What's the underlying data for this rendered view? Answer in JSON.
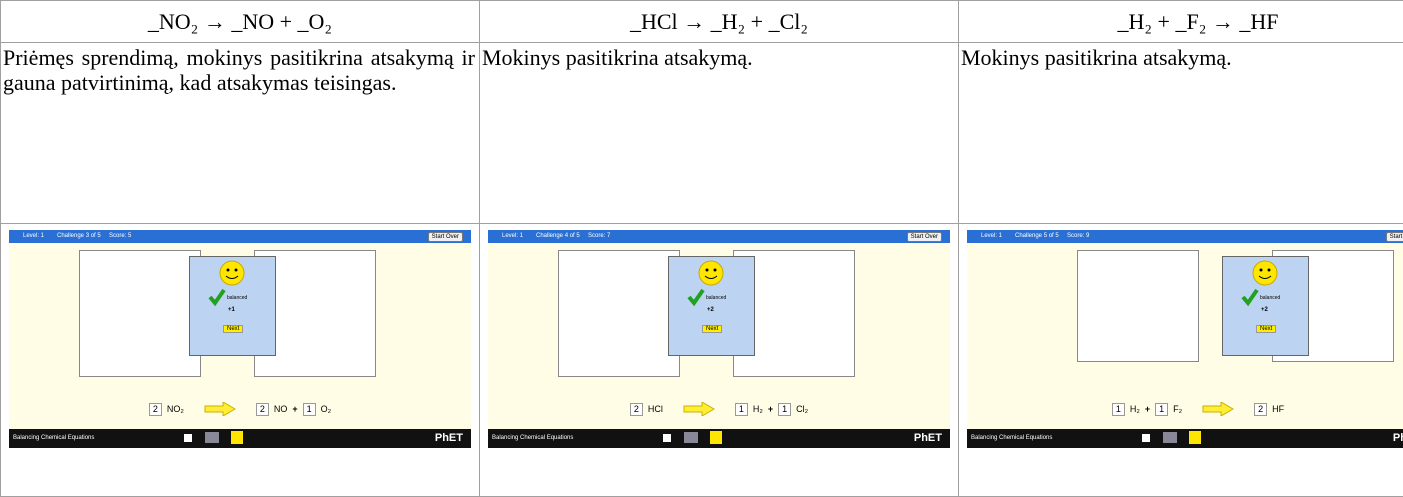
{
  "table": {
    "header": [
      "_NO₂ → _NO + _O₂",
      "_HCl → _H₂ + _Cl₂",
      "_H₂ + _F₂ → _HF"
    ],
    "descriptions": [
      "Priėmęs sprendimą, mokinys pasitikrina atsakymą ir gauna patvirtinimą, kad atsakymas teisingas.",
      "Mokinys pasitikrina atsakymą.",
      "Mokinys pasitikrina atsakymą."
    ]
  },
  "screenshots": [
    {
      "level": "Level: 1",
      "challenge": "Challenge 3 of 5",
      "score": "Score: 5",
      "button": "Start Over",
      "status": "balanced",
      "points": "+1",
      "next": "Next",
      "reactants": [
        {
          "coef": 2,
          "formula": "NO₂"
        }
      ],
      "products": [
        {
          "coef": 2,
          "formula": "NO"
        },
        {
          "coef": 1,
          "formula": "O₂"
        }
      ],
      "plus": "+",
      "footer": "Balancing Chemical Equations",
      "logo": "PhET"
    },
    {
      "level": "Level: 1",
      "challenge": "Challenge 4 of 5",
      "score": "Score: 7",
      "button": "Start Over",
      "status": "balanced",
      "points": "+2",
      "next": "Next",
      "reactants": [
        {
          "coef": 2,
          "formula": "HCl"
        }
      ],
      "products": [
        {
          "coef": 1,
          "formula": "H₂"
        },
        {
          "coef": 1,
          "formula": "Cl₂"
        }
      ],
      "plus": "+",
      "footer": "Balancing Chemical Equations",
      "logo": "PhET"
    },
    {
      "level": "Level: 1",
      "challenge": "Challenge 5 of 5",
      "score": "Score: 9",
      "button": "Start Over",
      "status": "balanced",
      "points": "+2",
      "next": "Next",
      "reactants": [
        {
          "coef": 1,
          "formula": "H₂"
        },
        {
          "coef": 1,
          "formula": "F₂"
        }
      ],
      "products": [
        {
          "coef": 2,
          "formula": "HF"
        }
      ],
      "plus": "+",
      "footer": "Balancing Chemical Equations",
      "logo": "PhET"
    }
  ]
}
